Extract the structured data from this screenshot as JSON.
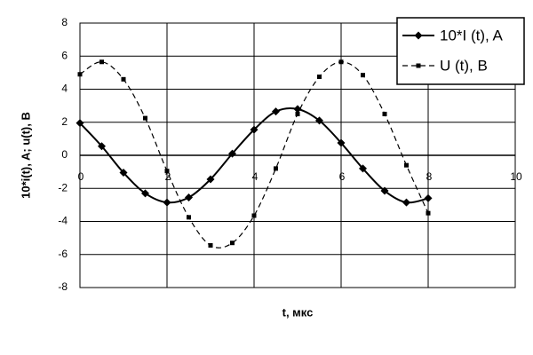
{
  "chart_data": {
    "type": "line",
    "y_label": "10*i(t), A; u(t), B",
    "x_label": "t, мкс",
    "x": [
      0,
      0.5,
      1,
      1.5,
      2,
      2.5,
      3,
      3.5,
      4,
      4.5,
      5,
      5.5,
      6,
      6.5,
      7,
      7.5,
      8
    ],
    "series": [
      {
        "name": "10*I (t), A",
        "color": "#000000",
        "marker": "diamond",
        "dash": false,
        "values": [
          1.95,
          0.55,
          -1.05,
          -2.3,
          -2.85,
          -2.55,
          -1.45,
          0.1,
          1.55,
          2.65,
          2.8,
          2.1,
          0.75,
          -0.8,
          -2.15,
          -2.85,
          -2.6
        ]
      },
      {
        "name": "U (t), B",
        "color": "#000000",
        "marker": "square",
        "dash": true,
        "values": [
          4.9,
          5.65,
          4.6,
          2.25,
          -0.95,
          -3.75,
          -5.45,
          -5.3,
          -3.65,
          -0.8,
          2.5,
          4.75,
          5.65,
          4.85,
          2.5,
          -0.6,
          -3.5
        ]
      }
    ],
    "xlim": [
      0,
      10
    ],
    "xticks": [
      0,
      2,
      4,
      6,
      8,
      10
    ],
    "ylim": [
      -8,
      8
    ],
    "yticks": [
      -8,
      -6,
      -4,
      -2,
      0,
      2,
      4,
      6,
      8
    ],
    "grid": true,
    "legend": "top-right"
  }
}
